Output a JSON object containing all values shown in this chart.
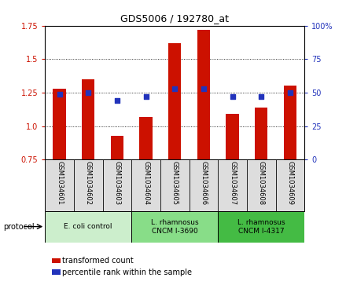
{
  "title": "GDS5006 / 192780_at",
  "samples": [
    "GSM1034601",
    "GSM1034602",
    "GSM1034603",
    "GSM1034604",
    "GSM1034605",
    "GSM1034606",
    "GSM1034607",
    "GSM1034608",
    "GSM1034609"
  ],
  "transformed_count": [
    1.28,
    1.35,
    0.93,
    1.07,
    1.62,
    1.72,
    1.09,
    1.14,
    1.3
  ],
  "percentile_rank": [
    49,
    50,
    44,
    47,
    53,
    53,
    47,
    47,
    50
  ],
  "ylim_left": [
    0.75,
    1.75
  ],
  "ylim_right": [
    0,
    100
  ],
  "yticks_left": [
    0.75,
    1.0,
    1.25,
    1.5,
    1.75
  ],
  "yticks_right": [
    0,
    25,
    50,
    75,
    100
  ],
  "bar_color": "#cc1100",
  "dot_color": "#2233bb",
  "background_plot": "#ffffff",
  "sample_label_bg": "#dddddd",
  "protocol_groups": [
    {
      "label": "E. coli control",
      "indices": [
        0,
        1,
        2
      ],
      "color": "#cceecc"
    },
    {
      "label": "L. rhamnosus\nCNCM I-3690",
      "indices": [
        3,
        4,
        5
      ],
      "color": "#88dd88"
    },
    {
      "label": "L. rhamnosus\nCNCM I-4317",
      "indices": [
        6,
        7,
        8
      ],
      "color": "#44bb44"
    }
  ],
  "legend_bar_label": "transformed count",
  "legend_dot_label": "percentile rank within the sample",
  "protocol_label": "protocol"
}
